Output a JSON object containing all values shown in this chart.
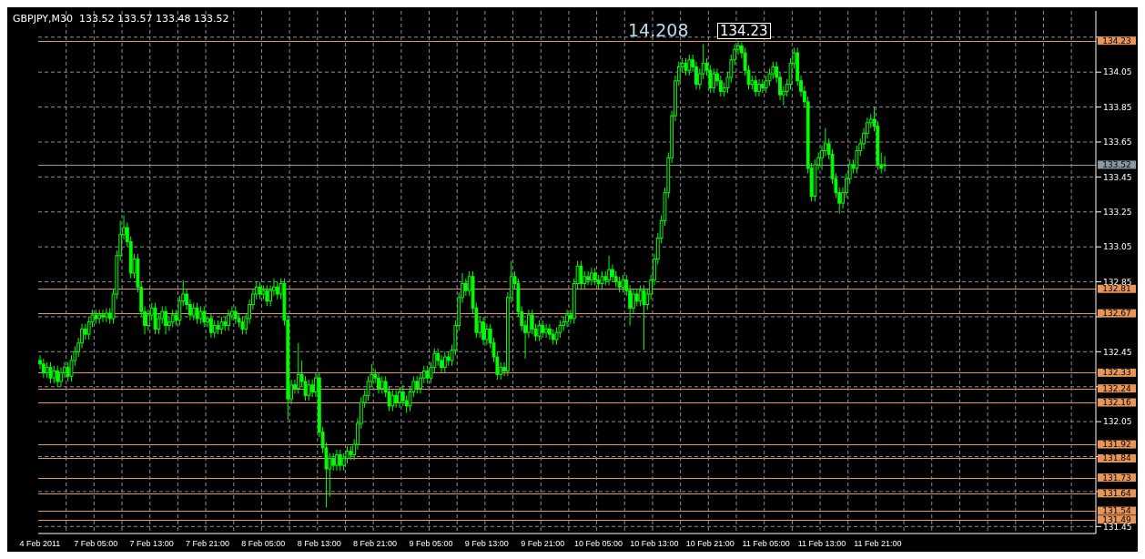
{
  "chart_data": {
    "type": "candlestick",
    "title": "GBPJPY,M30  133.52 133.57 133.48 133.52",
    "color": "#00ff00",
    "grid": true,
    "ylim": [
      131.41,
      134.4
    ],
    "yticks": [
      {
        "value": 134.25,
        "label": null
      },
      134.05,
      133.85,
      133.65,
      133.45,
      133.25,
      133.05,
      132.85,
      {
        "value": 132.65,
        "label": null
      },
      132.45,
      {
        "value": 132.25,
        "label": null
      },
      132.05,
      {
        "value": 131.85,
        "label": null
      },
      {
        "value": 131.65,
        "label": null
      },
      131.45
    ],
    "annotations": [
      "14.208",
      {
        "text": "134.23",
        "y": 134.23
      }
    ],
    "ref_lines": [
      {
        "axis": "y",
        "value": 134.23,
        "label": "134.23",
        "color": "#e8955a"
      },
      {
        "axis": "y",
        "value": 133.52,
        "label": "133.52",
        "color": "#8896a6"
      },
      {
        "axis": "y",
        "value": 132.81,
        "label": "132.81",
        "color": "#e8955a"
      },
      {
        "axis": "y",
        "value": 132.67,
        "label": "132.67",
        "color": "#e8955a"
      },
      {
        "axis": "y",
        "value": 132.33,
        "label": "132.33",
        "color": "#e8955a"
      },
      {
        "axis": "y",
        "value": 132.24,
        "label": "132.24",
        "color": "#e8955a"
      },
      {
        "axis": "y",
        "value": 132.16,
        "label": "132.16",
        "color": "#e8955a"
      },
      {
        "axis": "y",
        "value": 131.92,
        "label": "131.92",
        "color": "#e8955a"
      },
      {
        "axis": "y",
        "value": 131.84,
        "label": "131.84",
        "color": "#e8955a"
      },
      {
        "axis": "y",
        "value": 131.73,
        "label": "131.73",
        "color": "#e8955a"
      },
      {
        "axis": "y",
        "value": 131.64,
        "label": "131.64",
        "color": "#e8955a"
      },
      {
        "axis": "y",
        "value": 131.54,
        "label": "131.54",
        "color": "#e8955a"
      },
      {
        "axis": "y",
        "value": 131.49,
        "label": "131.49",
        "color": "#e8955a"
      }
    ],
    "categories": [
      "4 Feb 2011",
      null,
      null,
      null,
      null,
      null,
      null,
      null,
      null,
      null,
      null,
      null,
      null,
      null,
      null,
      null,
      "7 Feb 05:00",
      null,
      null,
      null,
      null,
      null,
      null,
      null,
      null,
      null,
      null,
      null,
      null,
      null,
      null,
      null,
      "7 Feb 13:00",
      null,
      null,
      null,
      null,
      null,
      null,
      null,
      null,
      null,
      null,
      null,
      null,
      null,
      null,
      null,
      "7 Feb 21:00",
      null,
      null,
      null,
      null,
      null,
      null,
      null,
      null,
      null,
      null,
      null,
      null,
      null,
      null,
      null,
      "8 Feb 05:00",
      null,
      null,
      null,
      null,
      null,
      null,
      null,
      null,
      null,
      null,
      null,
      null,
      null,
      null,
      null,
      "8 Feb 13:00",
      null,
      null,
      null,
      null,
      null,
      null,
      null,
      null,
      null,
      null,
      null,
      null,
      null,
      null,
      null,
      "8 Feb 21:00",
      null,
      null,
      null,
      null,
      null,
      null,
      null,
      null,
      null,
      null,
      null,
      null,
      null,
      null,
      null,
      "9 Feb 05:00",
      null,
      null,
      null,
      null,
      null,
      null,
      null,
      null,
      null,
      null,
      null,
      null,
      null,
      null,
      null,
      "9 Feb 13:00",
      null,
      null,
      null,
      null,
      null,
      null,
      null,
      null,
      null,
      null,
      null,
      null,
      null,
      null,
      null,
      "9 Feb 21:00",
      null,
      null,
      null,
      null,
      null,
      null,
      null,
      null,
      null,
      null,
      null,
      null,
      null,
      null,
      null,
      "10 Feb 05:00",
      null,
      null,
      null,
      null,
      null,
      null,
      null,
      null,
      null,
      null,
      null,
      null,
      null,
      null,
      null,
      "10 Feb 13:00",
      null,
      null,
      null,
      null,
      null,
      null,
      null,
      null,
      null,
      null,
      null,
      null,
      null,
      null,
      null,
      "10 Feb 21:00",
      null,
      null,
      null,
      null,
      null,
      null,
      null,
      null,
      null,
      null,
      null,
      null,
      null,
      null,
      null,
      "11 Feb 05:00",
      null,
      null,
      null,
      null,
      null,
      null,
      null,
      null,
      null,
      null,
      null,
      null,
      null,
      null,
      null,
      "11 Feb 13:00",
      null,
      null,
      null,
      null,
      null,
      null,
      null,
      null,
      null,
      null,
      null,
      null,
      null,
      null,
      null,
      "11 Feb 21:00",
      null,
      null,
      null,
      null,
      null,
      null,
      null,
      null,
      null,
      null,
      null,
      null,
      null,
      null,
      null,
      null,
      null,
      null,
      null,
      null,
      null,
      null,
      null,
      null,
      null,
      null,
      null,
      null,
      null,
      null,
      null,
      null,
      null,
      null,
      null,
      null,
      null,
      null,
      null,
      null,
      null,
      null,
      null,
      null,
      null,
      null,
      null,
      null,
      null,
      null,
      null,
      null,
      null,
      null,
      null,
      null,
      null,
      null,
      null,
      null,
      null,
      null
    ],
    "ohlc": [
      [
        132.4,
        132.43,
        132.35,
        132.38
      ],
      [
        132.38,
        132.41,
        132.3,
        132.33
      ],
      [
        132.33,
        132.39,
        132.3,
        132.36
      ],
      [
        132.36,
        132.39,
        132.27,
        132.3
      ],
      [
        132.3,
        132.37,
        132.27,
        132.34
      ],
      [
        132.34,
        132.37,
        132.25,
        132.28
      ],
      [
        132.28,
        132.36,
        132.25,
        132.33
      ],
      [
        132.33,
        132.39,
        132.3,
        132.36
      ],
      [
        132.36,
        132.39,
        132.28,
        132.31
      ],
      [
        132.31,
        132.43,
        132.28,
        132.4
      ],
      [
        132.4,
        132.48,
        132.37,
        132.45
      ],
      [
        132.45,
        132.53,
        132.42,
        132.5
      ],
      [
        132.5,
        132.61,
        132.47,
        132.58
      ],
      [
        132.58,
        132.61,
        132.52,
        132.55
      ],
      [
        132.55,
        132.65,
        132.52,
        132.62
      ],
      [
        132.62,
        132.69,
        132.59,
        132.66
      ],
      [
        132.66,
        132.69,
        132.61,
        132.64
      ],
      [
        132.64,
        132.69,
        132.61,
        132.66
      ],
      [
        132.66,
        132.69,
        132.62,
        132.65
      ],
      [
        132.65,
        132.7,
        132.62,
        132.67
      ],
      [
        132.67,
        132.7,
        132.61,
        132.64
      ],
      [
        132.64,
        132.81,
        132.61,
        132.78
      ],
      [
        132.78,
        133.03,
        132.75,
        133.0
      ],
      [
        133.0,
        133.2,
        132.97,
        133.12
      ],
      [
        133.12,
        133.23,
        133.09,
        133.16
      ],
      [
        133.16,
        133.19,
        133.05,
        133.08
      ],
      [
        133.08,
        133.11,
        132.87,
        132.9
      ],
      [
        132.9,
        133.01,
        132.87,
        132.98
      ],
      [
        132.98,
        133.01,
        132.79,
        132.82
      ],
      [
        132.82,
        132.85,
        132.65,
        132.68
      ],
      [
        132.68,
        132.71,
        132.55,
        132.6
      ],
      [
        132.6,
        132.69,
        132.57,
        132.66
      ],
      [
        132.66,
        132.73,
        132.63,
        132.7
      ],
      [
        132.7,
        132.73,
        132.55,
        132.58
      ],
      [
        132.58,
        132.67,
        132.55,
        132.64
      ],
      [
        132.64,
        132.71,
        132.61,
        132.68
      ],
      [
        132.68,
        132.71,
        132.55,
        132.6
      ],
      [
        132.6,
        132.65,
        132.57,
        132.62
      ],
      [
        132.62,
        132.69,
        132.59,
        132.66
      ],
      [
        132.66,
        132.69,
        132.6,
        132.63
      ],
      [
        132.63,
        132.77,
        132.6,
        132.74
      ],
      [
        132.74,
        132.86,
        132.71,
        132.78
      ],
      [
        132.78,
        132.81,
        132.69,
        132.72
      ],
      [
        132.72,
        132.75,
        132.63,
        132.66
      ],
      [
        132.66,
        132.73,
        132.63,
        132.7
      ],
      [
        132.7,
        132.73,
        132.61,
        132.64
      ],
      [
        132.64,
        132.71,
        132.61,
        132.68
      ],
      [
        132.68,
        132.71,
        132.59,
        132.62
      ],
      [
        132.62,
        132.65,
        132.59,
        132.64
      ],
      [
        132.64,
        132.67,
        132.53,
        132.56
      ],
      [
        132.56,
        132.63,
        132.53,
        132.6
      ],
      [
        132.6,
        132.63,
        132.55,
        132.58
      ],
      [
        132.58,
        132.65,
        132.55,
        132.62
      ],
      [
        132.62,
        132.65,
        132.57,
        132.6
      ],
      [
        132.6,
        132.69,
        132.57,
        132.66
      ],
      [
        132.66,
        132.71,
        132.63,
        132.68
      ],
      [
        132.68,
        132.71,
        132.61,
        132.64
      ],
      [
        132.64,
        132.67,
        132.59,
        132.62
      ],
      [
        132.62,
        132.65,
        132.55,
        132.58
      ],
      [
        132.58,
        132.67,
        132.55,
        132.64
      ],
      [
        132.64,
        132.75,
        132.61,
        132.72
      ],
      [
        132.72,
        132.81,
        132.69,
        132.78
      ],
      [
        132.78,
        132.85,
        132.75,
        132.82
      ],
      [
        132.82,
        132.85,
        132.75,
        132.78
      ],
      [
        132.78,
        132.83,
        132.75,
        132.8
      ],
      [
        132.8,
        132.83,
        132.71,
        132.74
      ],
      [
        132.74,
        132.83,
        132.71,
        132.8
      ],
      [
        132.8,
        132.87,
        132.77,
        132.82
      ],
      [
        132.82,
        132.85,
        132.75,
        132.78
      ],
      [
        132.78,
        132.87,
        132.75,
        132.84
      ],
      [
        132.84,
        132.87,
        132.6,
        132.63
      ],
      [
        132.63,
        132.66,
        132.06,
        132.18
      ],
      [
        132.18,
        132.29,
        132.15,
        132.26
      ],
      [
        132.26,
        132.29,
        132.21,
        132.24
      ],
      [
        132.24,
        132.5,
        132.21,
        132.32
      ],
      [
        132.32,
        132.4,
        132.25,
        132.28
      ],
      [
        132.28,
        132.31,
        132.17,
        132.2
      ],
      [
        132.2,
        132.29,
        132.17,
        132.26
      ],
      [
        132.26,
        132.29,
        132.19,
        132.22
      ],
      [
        132.22,
        132.33,
        132.19,
        132.3
      ],
      [
        132.3,
        132.33,
        131.96,
        131.99
      ],
      [
        131.99,
        132.02,
        131.87,
        131.9
      ],
      [
        131.9,
        131.93,
        131.56,
        131.78
      ],
      [
        131.78,
        131.87,
        131.62,
        131.84
      ],
      [
        131.84,
        131.87,
        131.77,
        131.8
      ],
      [
        131.8,
        131.89,
        131.77,
        131.86
      ],
      [
        131.86,
        131.89,
        131.77,
        131.8
      ],
      [
        131.8,
        131.87,
        131.77,
        131.84
      ],
      [
        131.84,
        131.91,
        131.81,
        131.88
      ],
      [
        131.88,
        131.91,
        131.83,
        131.86
      ],
      [
        131.86,
        131.95,
        131.83,
        131.92
      ],
      [
        131.92,
        132.07,
        131.89,
        132.04
      ],
      [
        132.04,
        132.19,
        132.01,
        132.16
      ],
      [
        132.16,
        132.23,
        132.13,
        132.2
      ],
      [
        132.2,
        132.31,
        132.17,
        132.28
      ],
      [
        132.28,
        132.38,
        132.25,
        132.32
      ],
      [
        132.32,
        132.35,
        132.27,
        132.3
      ],
      [
        132.3,
        132.33,
        132.21,
        132.24
      ],
      [
        132.24,
        132.31,
        132.21,
        132.28
      ],
      [
        132.28,
        132.31,
        132.19,
        132.22
      ],
      [
        132.22,
        132.25,
        132.11,
        132.14
      ],
      [
        132.14,
        132.23,
        132.11,
        132.2
      ],
      [
        132.2,
        132.23,
        132.13,
        132.16
      ],
      [
        132.16,
        132.25,
        132.13,
        132.22
      ],
      [
        132.22,
        132.26,
        132.14,
        132.17
      ],
      [
        132.17,
        132.2,
        132.1,
        132.14
      ],
      [
        132.14,
        132.25,
        132.11,
        132.22
      ],
      [
        132.22,
        132.31,
        132.19,
        132.28
      ],
      [
        132.28,
        132.31,
        132.21,
        132.24
      ],
      [
        132.24,
        132.33,
        132.21,
        132.3
      ],
      [
        132.3,
        132.37,
        132.27,
        132.34
      ],
      [
        132.34,
        132.37,
        132.27,
        132.3
      ],
      [
        132.3,
        132.39,
        132.27,
        132.36
      ],
      [
        132.36,
        132.47,
        132.33,
        132.44
      ],
      [
        132.44,
        132.47,
        132.37,
        132.4
      ],
      [
        132.4,
        132.43,
        132.33,
        132.36
      ],
      [
        132.36,
        132.45,
        132.33,
        132.42
      ],
      [
        132.42,
        132.45,
        132.37,
        132.4
      ],
      [
        132.4,
        132.49,
        132.37,
        132.46
      ],
      [
        132.46,
        132.63,
        132.43,
        132.6
      ],
      [
        132.6,
        132.79,
        132.57,
        132.76
      ],
      [
        132.76,
        132.9,
        132.73,
        132.84
      ],
      [
        132.84,
        132.87,
        132.77,
        132.8
      ],
      [
        132.8,
        132.91,
        132.77,
        132.88
      ],
      [
        132.88,
        132.91,
        132.67,
        132.7
      ],
      [
        132.7,
        132.73,
        132.53,
        132.56
      ],
      [
        132.56,
        132.65,
        132.53,
        132.62
      ],
      [
        132.62,
        132.65,
        132.49,
        132.52
      ],
      [
        132.52,
        132.61,
        132.49,
        132.58
      ],
      [
        132.58,
        132.61,
        132.47,
        132.5
      ],
      [
        132.5,
        132.53,
        132.39,
        132.42
      ],
      [
        132.42,
        132.45,
        132.29,
        132.32
      ],
      [
        132.32,
        132.39,
        132.29,
        132.36
      ],
      [
        132.36,
        132.39,
        132.31,
        132.34
      ],
      [
        132.34,
        132.79,
        132.31,
        132.76
      ],
      [
        132.76,
        132.97,
        132.73,
        132.88
      ],
      [
        132.88,
        132.91,
        132.81,
        132.84
      ],
      [
        132.84,
        132.87,
        132.65,
        132.68
      ],
      [
        132.68,
        132.71,
        132.57,
        132.6
      ],
      [
        132.6,
        132.63,
        132.41,
        132.56
      ],
      [
        132.56,
        132.69,
        132.53,
        132.66
      ],
      [
        132.66,
        132.69,
        132.55,
        132.58
      ],
      [
        132.58,
        132.61,
        132.51,
        132.54
      ],
      [
        132.54,
        132.63,
        132.51,
        132.6
      ],
      [
        132.6,
        132.63,
        132.53,
        132.56
      ],
      [
        132.56,
        132.61,
        132.53,
        132.58
      ],
      [
        132.58,
        132.61,
        132.52,
        132.55
      ],
      [
        132.55,
        132.58,
        132.49,
        132.52
      ],
      [
        132.52,
        132.59,
        132.49,
        132.56
      ],
      [
        132.56,
        132.63,
        132.53,
        132.6
      ],
      [
        132.6,
        132.65,
        132.57,
        132.62
      ],
      [
        132.62,
        132.69,
        132.59,
        132.66
      ],
      [
        132.66,
        132.69,
        132.61,
        132.64
      ],
      [
        132.64,
        132.87,
        132.61,
        132.84
      ],
      [
        132.84,
        132.97,
        132.81,
        132.94
      ],
      [
        132.94,
        132.97,
        132.81,
        132.84
      ],
      [
        132.84,
        132.91,
        132.81,
        132.88
      ],
      [
        132.88,
        132.91,
        132.83,
        132.86
      ],
      [
        132.86,
        132.93,
        132.83,
        132.9
      ],
      [
        132.9,
        132.93,
        132.83,
        132.86
      ],
      [
        132.86,
        132.89,
        132.81,
        132.84
      ],
      [
        132.84,
        132.91,
        132.81,
        132.88
      ],
      [
        132.88,
        132.91,
        132.83,
        132.86
      ],
      [
        132.86,
        133.0,
        132.83,
        132.92
      ],
      [
        132.92,
        132.95,
        132.85,
        132.88
      ],
      [
        132.88,
        132.91,
        132.82,
        132.85
      ],
      [
        132.85,
        132.88,
        132.79,
        132.82
      ],
      [
        132.82,
        132.89,
        132.79,
        132.86
      ],
      [
        132.86,
        132.89,
        132.77,
        132.8
      ],
      [
        132.8,
        132.83,
        132.6,
        132.7
      ],
      [
        132.7,
        132.81,
        132.67,
        132.78
      ],
      [
        132.78,
        132.81,
        132.71,
        132.74
      ],
      [
        132.74,
        132.83,
        132.71,
        132.8
      ],
      [
        132.8,
        132.83,
        132.46,
        132.72
      ],
      [
        132.72,
        132.81,
        132.69,
        132.78
      ],
      [
        132.78,
        132.89,
        132.75,
        132.86
      ],
      [
        132.86,
        133.01,
        132.83,
        132.98
      ],
      [
        132.98,
        133.13,
        132.95,
        133.1
      ],
      [
        133.1,
        133.23,
        133.07,
        133.2
      ],
      [
        133.2,
        133.39,
        133.17,
        133.36
      ],
      [
        133.36,
        133.59,
        133.33,
        133.56
      ],
      [
        133.56,
        133.83,
        133.53,
        133.8
      ],
      [
        133.8,
        134.03,
        133.77,
        134.0
      ],
      [
        134.0,
        134.11,
        133.97,
        134.08
      ],
      [
        134.08,
        134.13,
        134.05,
        134.1
      ],
      [
        134.1,
        134.13,
        134.03,
        134.06
      ],
      [
        134.06,
        134.15,
        134.03,
        134.12
      ],
      [
        134.12,
        134.15,
        134.05,
        134.08
      ],
      [
        134.08,
        134.11,
        133.95,
        133.98
      ],
      [
        133.98,
        134.07,
        133.95,
        134.04
      ],
      [
        134.04,
        134.21,
        134.01,
        134.1
      ],
      [
        134.1,
        134.13,
        134.03,
        134.06
      ],
      [
        134.06,
        134.09,
        133.93,
        133.96
      ],
      [
        133.96,
        134.07,
        133.93,
        134.04
      ],
      [
        134.04,
        134.07,
        133.97,
        134.0
      ],
      [
        134.0,
        134.03,
        133.91,
        133.94
      ],
      [
        133.94,
        133.99,
        133.91,
        133.96
      ],
      [
        133.96,
        134.05,
        133.93,
        134.02
      ],
      [
        134.02,
        134.15,
        133.99,
        134.12
      ],
      [
        134.12,
        134.21,
        134.09,
        134.18
      ],
      [
        134.18,
        134.23,
        134.15,
        134.2
      ],
      [
        134.2,
        134.22,
        134.13,
        134.16
      ],
      [
        134.16,
        134.19,
        134.03,
        134.06
      ],
      [
        134.06,
        134.09,
        133.95,
        133.98
      ],
      [
        133.98,
        134.03,
        133.95,
        134.0
      ],
      [
        134.0,
        134.03,
        133.91,
        133.94
      ],
      [
        133.94,
        134.01,
        133.91,
        133.98
      ],
      [
        133.98,
        134.01,
        133.93,
        133.96
      ],
      [
        133.96,
        134.03,
        133.93,
        134.0
      ],
      [
        134.0,
        134.07,
        133.97,
        134.04
      ],
      [
        134.04,
        134.11,
        134.01,
        134.08
      ],
      [
        134.08,
        134.11,
        133.99,
        134.02
      ],
      [
        134.02,
        134.05,
        133.89,
        133.92
      ],
      [
        133.92,
        133.97,
        133.86,
        133.94
      ],
      [
        133.94,
        134.01,
        133.91,
        133.98
      ],
      [
        133.98,
        134.13,
        133.95,
        134.1
      ],
      [
        134.1,
        134.19,
        134.07,
        134.16
      ],
      [
        134.16,
        134.19,
        133.97,
        134.0
      ],
      [
        134.0,
        134.03,
        133.91,
        133.94
      ],
      [
        133.94,
        133.97,
        133.85,
        133.88
      ],
      [
        133.88,
        133.91,
        133.47,
        133.5
      ],
      [
        133.5,
        133.53,
        133.31,
        133.34
      ],
      [
        133.34,
        133.55,
        133.31,
        133.52
      ],
      [
        133.52,
        133.59,
        133.49,
        133.56
      ],
      [
        133.56,
        133.63,
        133.49,
        133.6
      ],
      [
        133.6,
        133.73,
        133.57,
        133.64
      ],
      [
        133.64,
        133.67,
        133.55,
        133.58
      ],
      [
        133.58,
        133.61,
        133.41,
        133.44
      ],
      [
        133.44,
        133.47,
        133.33,
        133.36
      ],
      [
        133.36,
        133.39,
        133.24,
        133.3
      ],
      [
        133.3,
        133.39,
        133.27,
        133.36
      ],
      [
        133.36,
        133.47,
        133.33,
        133.44
      ],
      [
        133.44,
        133.55,
        133.41,
        133.52
      ],
      [
        133.52,
        133.55,
        133.47,
        133.5
      ],
      [
        133.5,
        133.63,
        133.47,
        133.6
      ],
      [
        133.6,
        133.67,
        133.57,
        133.64
      ],
      [
        133.64,
        133.73,
        133.61,
        133.7
      ],
      [
        133.7,
        133.79,
        133.67,
        133.76
      ],
      [
        133.76,
        133.81,
        133.73,
        133.78
      ],
      [
        133.78,
        133.85,
        133.71,
        133.74
      ],
      [
        133.74,
        133.77,
        133.49,
        133.52
      ],
      [
        133.52,
        133.59,
        133.47,
        133.5
      ],
      [
        133.52,
        133.57,
        133.48,
        133.52
      ],
      null,
      null,
      null,
      null,
      null,
      null,
      null,
      null,
      null,
      null,
      null,
      null,
      null,
      null,
      null,
      null,
      null,
      null,
      null,
      null,
      null,
      null,
      null,
      null,
      null,
      null,
      null,
      null,
      null,
      null,
      null,
      null,
      null,
      null,
      null,
      null,
      null,
      null,
      null,
      null,
      null,
      null,
      null,
      null,
      null,
      null,
      null,
      null,
      null,
      null,
      null,
      null,
      null,
      null,
      null,
      null,
      null,
      null,
      null,
      null
    ]
  }
}
